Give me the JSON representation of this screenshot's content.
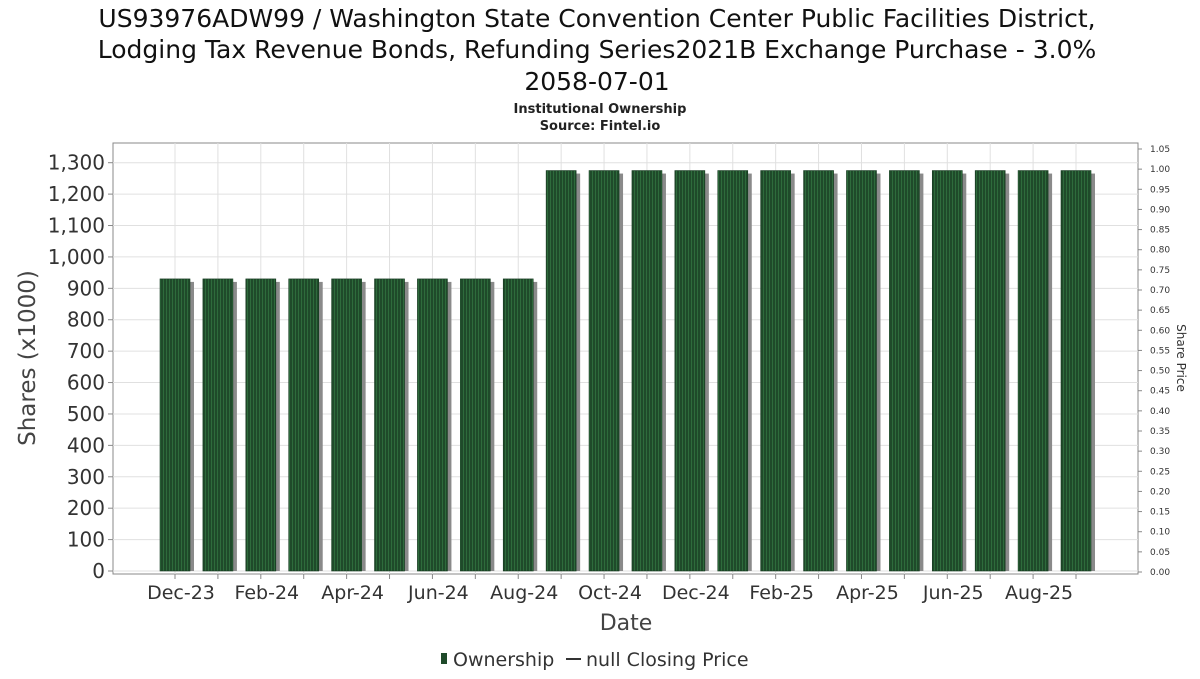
{
  "title_lines": [
    "US93976ADW99 / Washington State Convention Center Public Facilities District,",
    "Lodging Tax Revenue Bonds, Refunding Series2021B Exchange Purchase - 3.0%",
    "2058-07-01"
  ],
  "subtitle": "Institutional Ownership",
  "source": "Source: Fintel.io",
  "colors": {
    "bar": "#1f4a2a",
    "bar_stripe": "#2e6b3c",
    "bar_shadow": "#8a8a8a",
    "grid": "#e0e0e0",
    "axis": "#888888",
    "text": "#333333"
  },
  "chart_data": {
    "type": "bar",
    "xlabel": "Date",
    "ylabel": "Shares (x1000)",
    "y2label": "Share Price",
    "ylim": [
      0,
      1350
    ],
    "y2lim": [
      0,
      1.05
    ],
    "yticks": [
      0,
      100,
      200,
      300,
      400,
      500,
      600,
      700,
      800,
      900,
      1000,
      1100,
      1200,
      1300
    ],
    "yticklabels": [
      "0",
      "100",
      "200",
      "300",
      "400",
      "500",
      "600",
      "700",
      "800",
      "900",
      "1,000",
      "1,100",
      "1,200",
      "1,300"
    ],
    "y2ticks": [
      0.0,
      0.05,
      0.1,
      0.15,
      0.2,
      0.25,
      0.3,
      0.35,
      0.4,
      0.45,
      0.5,
      0.55,
      0.6,
      0.65,
      0.7,
      0.75,
      0.8,
      0.85,
      0.9,
      0.95,
      1.0,
      1.05
    ],
    "y2ticklabels": [
      "0.00",
      "0.05",
      "0.10",
      "0.15",
      "0.20",
      "0.25",
      "0.30",
      "0.35",
      "0.40",
      "0.45",
      "0.50",
      "0.55",
      "0.60",
      "0.65",
      "0.70",
      "0.75",
      "0.80",
      "0.85",
      "0.90",
      "0.95",
      "1.00",
      "1.05"
    ],
    "xticklabels": [
      "Dec-23",
      "Feb-24",
      "Apr-24",
      "Jun-24",
      "Aug-24",
      "Oct-24",
      "Dec-24",
      "Feb-25",
      "Apr-25",
      "Jun-25",
      "Aug-25"
    ],
    "grid": true,
    "legend_position": "bottom",
    "series": [
      {
        "name": "Ownership",
        "values": [
          930,
          930,
          930,
          930,
          930,
          930,
          930,
          930,
          930,
          1275,
          1275,
          1275,
          1275,
          1275,
          1275,
          1275,
          1275,
          1275,
          1275,
          1275,
          1275,
          1275
        ]
      },
      {
        "name": "null Closing Price",
        "values": []
      }
    ]
  }
}
